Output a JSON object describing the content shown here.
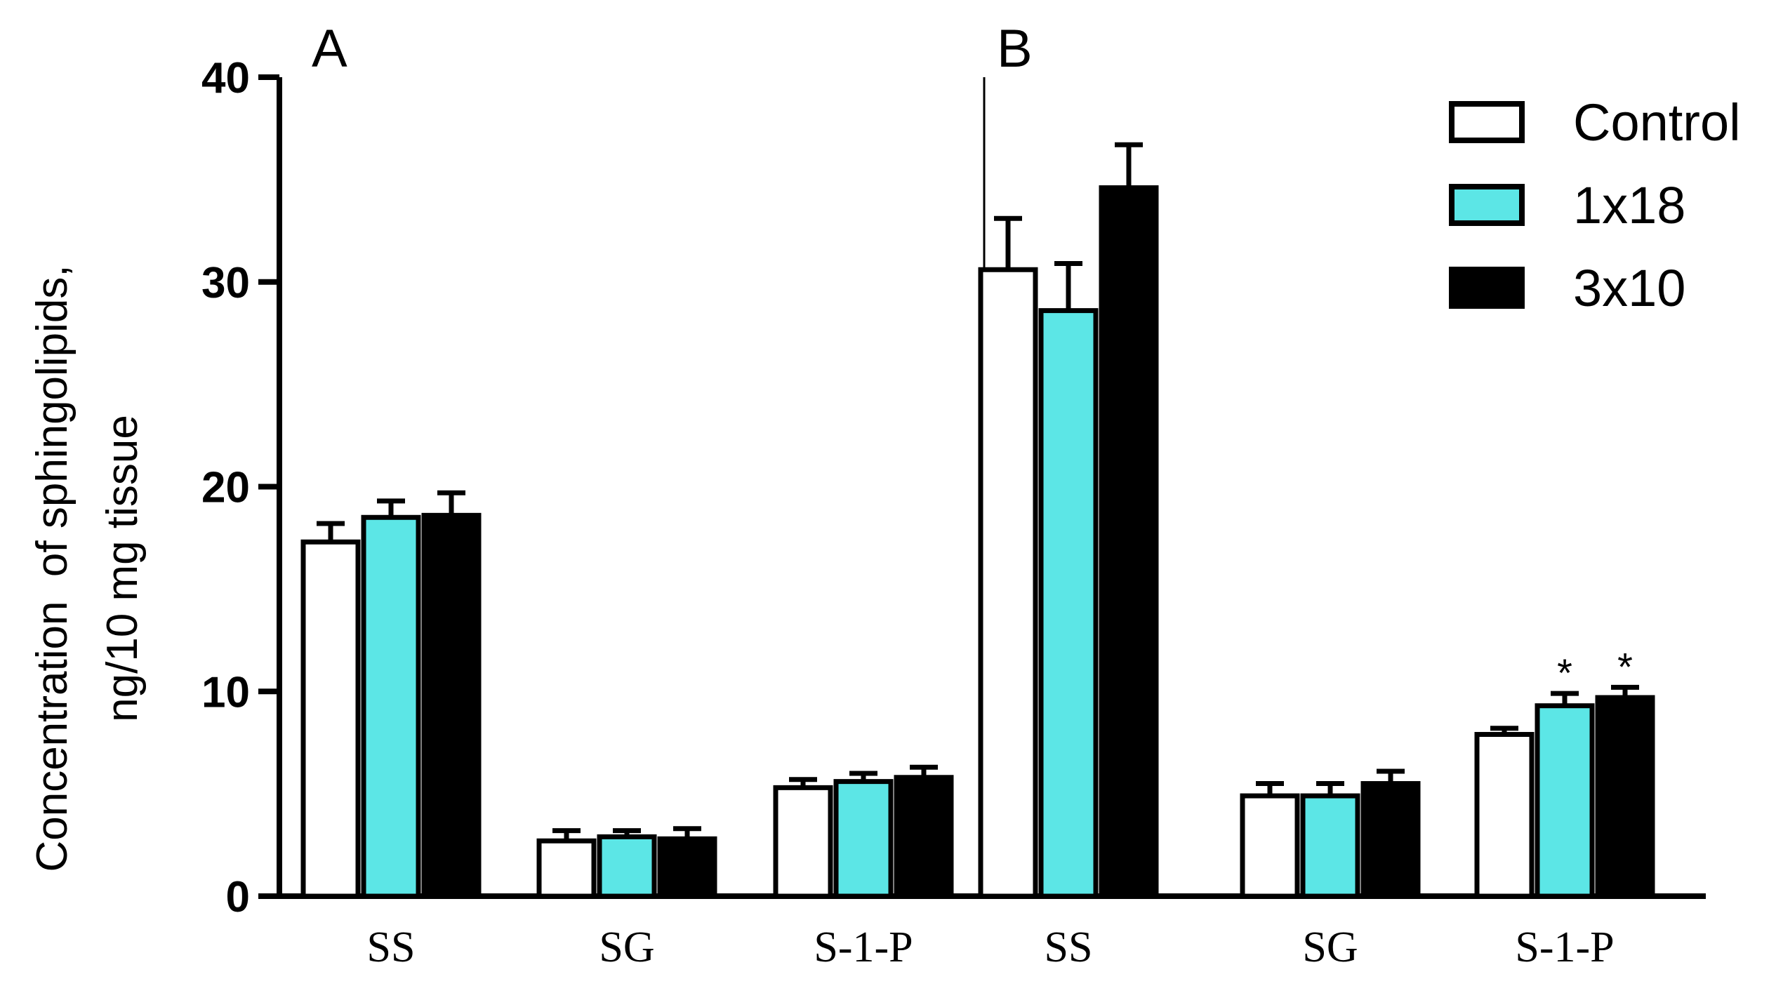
{
  "chart_data": {
    "type": "bar",
    "ylabel": [
      "Concentration  of sphingolipids,",
      "ng/10 mg tissue"
    ],
    "ylim": [
      0,
      40
    ],
    "yticks": [
      "0",
      "10",
      "20",
      "30",
      "40"
    ],
    "legend_position": "top-right",
    "series_names": [
      "Control",
      "1x18",
      "3x10"
    ],
    "series_colors": [
      "#ffffff",
      "#5ce6e6",
      "#000000"
    ],
    "panels": [
      {
        "label": "A",
        "categories": [
          {
            "name": "SS",
            "values": [
              17.3,
              18.5,
              18.6
            ],
            "errors": [
              0.9,
              0.8,
              1.1
            ],
            "stars": [
              "",
              "",
              ""
            ]
          },
          {
            "name": "SG",
            "values": [
              2.7,
              2.9,
              2.8
            ],
            "errors": [
              0.5,
              0.3,
              0.5
            ],
            "stars": [
              "",
              "",
              ""
            ]
          },
          {
            "name": "S-1-P",
            "values": [
              5.3,
              5.6,
              5.8
            ],
            "errors": [
              0.4,
              0.4,
              0.5
            ],
            "stars": [
              "",
              "",
              ""
            ]
          }
        ]
      },
      {
        "label": "B",
        "categories": [
          {
            "name": "SS",
            "values": [
              30.6,
              28.6,
              34.6
            ],
            "errors": [
              2.5,
              2.3,
              2.1
            ],
            "stars": [
              "",
              "",
              ""
            ]
          },
          {
            "name": "SG",
            "values": [
              4.9,
              4.9,
              5.5
            ],
            "errors": [
              0.6,
              0.6,
              0.6
            ],
            "stars": [
              "",
              "",
              ""
            ]
          },
          {
            "name": "S-1-P",
            "values": [
              7.9,
              9.3,
              9.7
            ],
            "errors": [
              0.3,
              0.6,
              0.5
            ],
            "stars": [
              "",
              "*",
              "*"
            ]
          }
        ]
      }
    ]
  }
}
